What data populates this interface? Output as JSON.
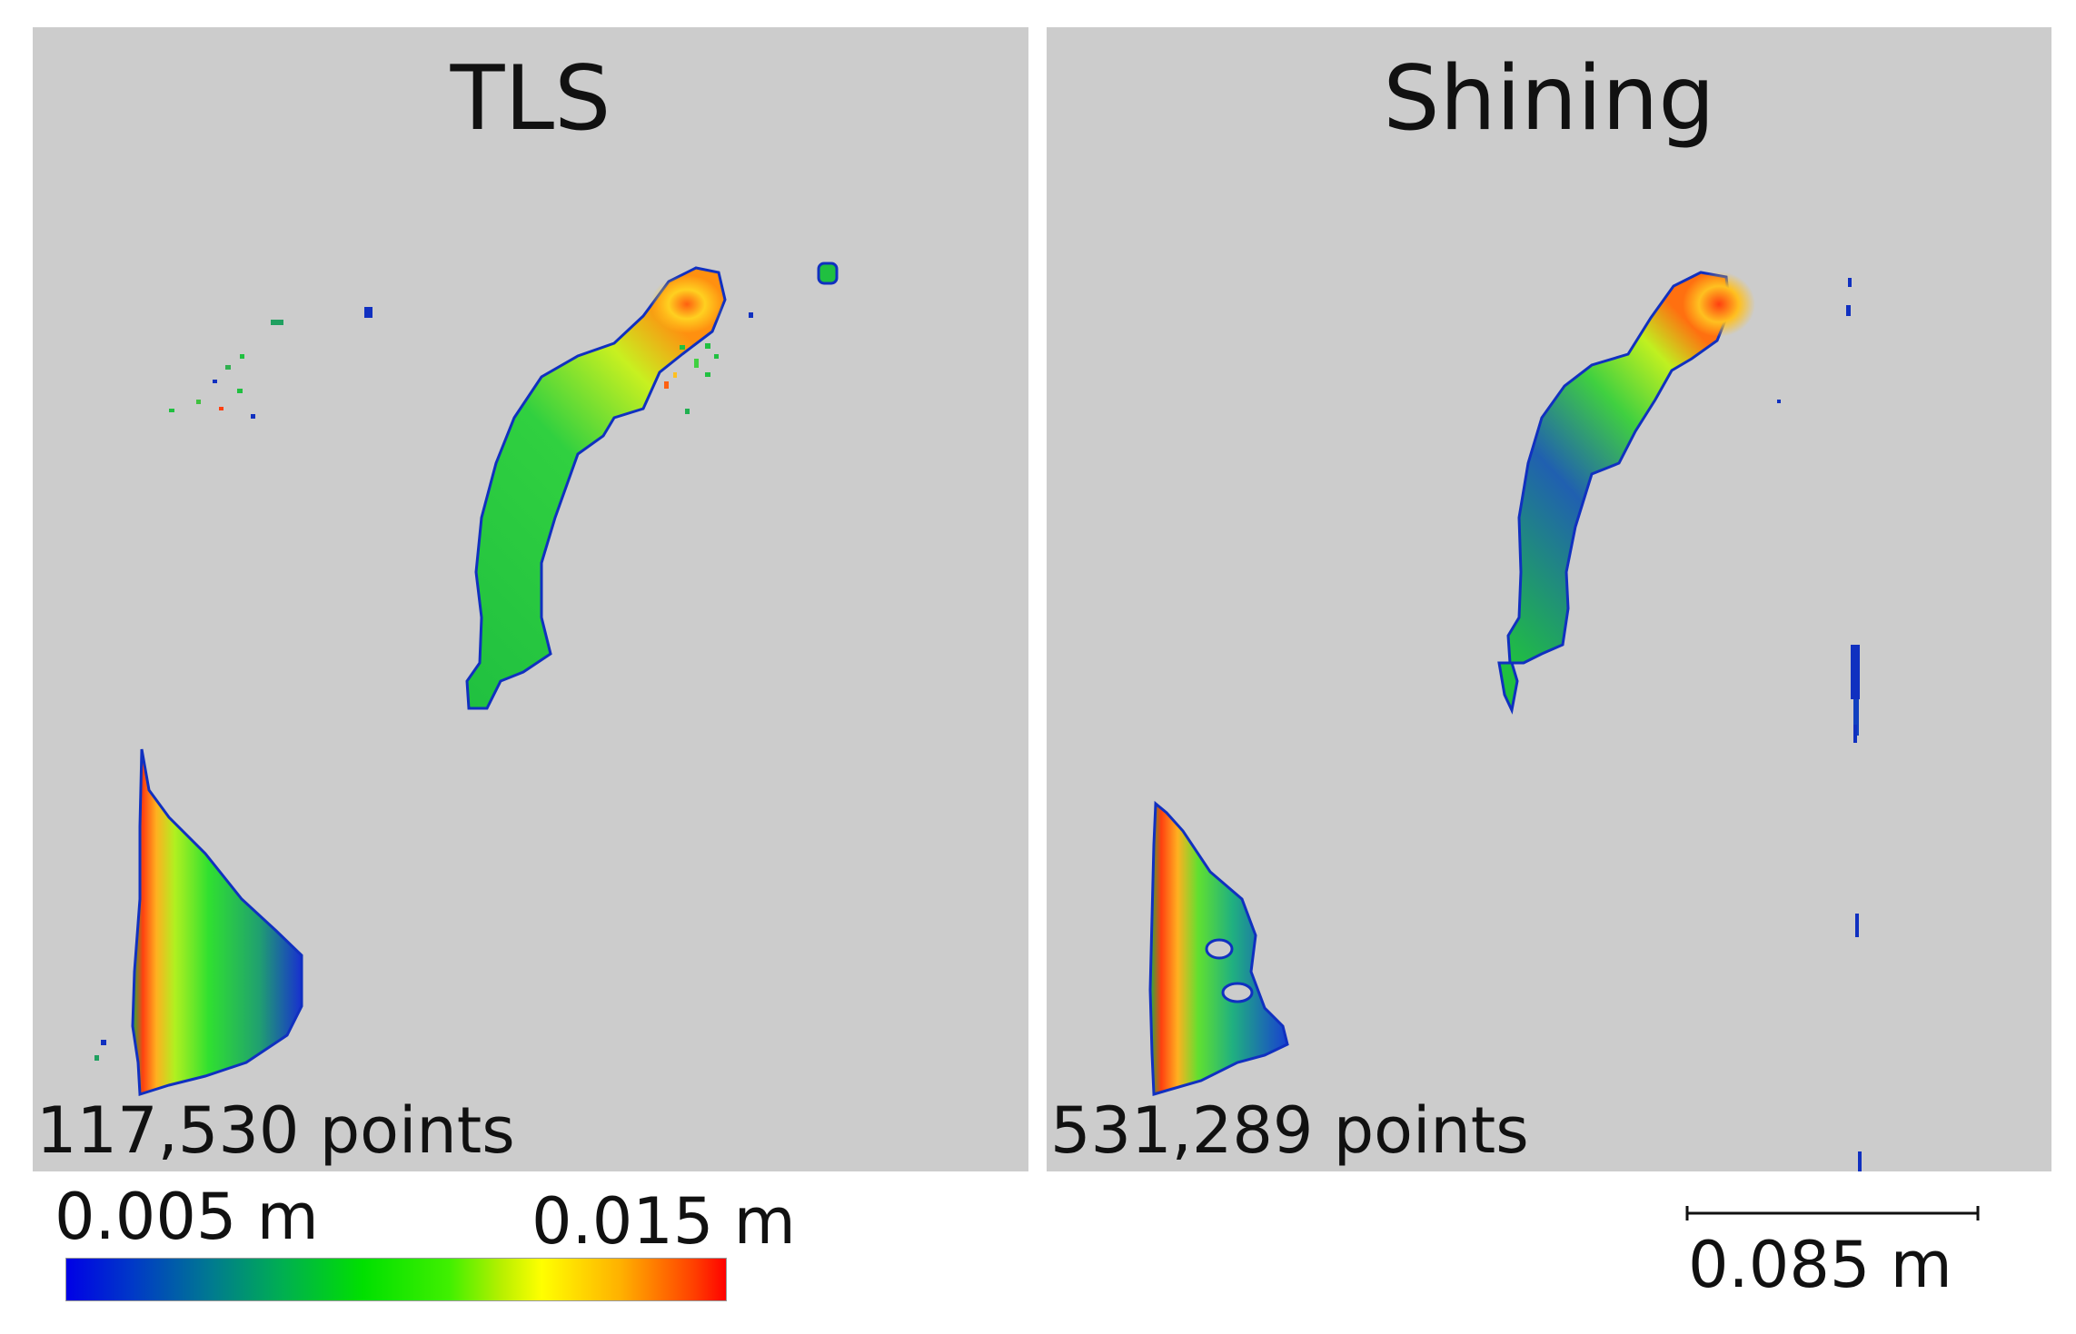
{
  "panels": [
    {
      "title": "TLS",
      "points_label": "117,530 points"
    },
    {
      "title": "Shining",
      "points_label": "531,289 points"
    }
  ],
  "colorbar": {
    "min_label": "0.005 m",
    "max_label": "0.015 m",
    "colors": [
      "#0000e6",
      "#00b050",
      "#00e000",
      "#ffff00",
      "#ff4000",
      "#ff0000"
    ]
  },
  "scalebar": {
    "label": "0.085 m"
  },
  "colors": {
    "background": "#cccccc"
  }
}
